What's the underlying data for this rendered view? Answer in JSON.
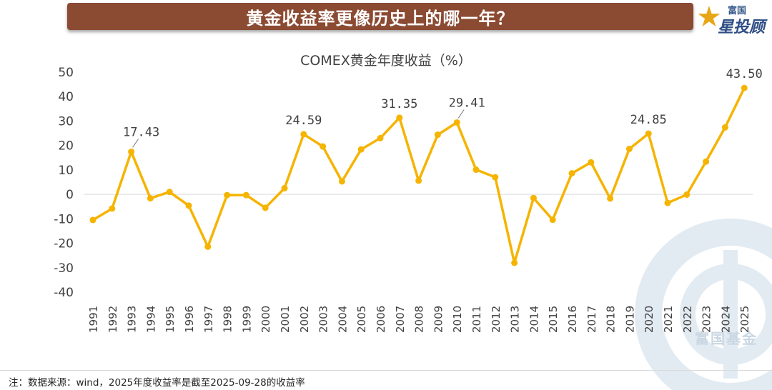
{
  "banner": {
    "title": "黄金收益率更像历史上的哪一年？"
  },
  "logo": {
    "line1": "富国",
    "line2": "星投顾"
  },
  "watermark": {
    "text": "富国基金"
  },
  "colors": {
    "banner": "#8b4a32",
    "series": "#f5b400",
    "axis_text": "#404040"
  },
  "footnote": "注：数据来源：wind，2025年度收益率是截至2025-09-28的收益率",
  "chart_data": {
    "type": "line",
    "title": "COMEX黄金年度收益（%）",
    "xlabel": "",
    "ylabel": "",
    "ylim": [
      -40,
      50
    ],
    "yticks": [
      -40,
      -30,
      -20,
      -10,
      0,
      10,
      20,
      30,
      40,
      50
    ],
    "grid": false,
    "categories": [
      "1991",
      "1992",
      "1993",
      "1994",
      "1995",
      "1996",
      "1997",
      "1998",
      "1999",
      "2000",
      "2001",
      "2002",
      "2003",
      "2004",
      "2005",
      "2006",
      "2007",
      "2008",
      "2009",
      "2010",
      "2011",
      "2012",
      "2013",
      "2014",
      "2015",
      "2016",
      "2017",
      "2018",
      "2019",
      "2020",
      "2021",
      "2022",
      "2023",
      "2024",
      "2025"
    ],
    "series": [
      {
        "values": [
          -10.5,
          -5.8,
          17.43,
          -1.6,
          1.0,
          -4.6,
          -21.4,
          -0.3,
          -0.3,
          -5.5,
          2.5,
          24.59,
          19.6,
          5.3,
          18.4,
          23.0,
          31.35,
          5.6,
          24.4,
          29.41,
          10.1,
          7.0,
          -28.0,
          -1.5,
          -10.4,
          8.6,
          13.1,
          -1.7,
          18.6,
          24.85,
          -3.5,
          -0.1,
          13.4,
          27.4,
          43.5
        ]
      }
    ],
    "annotations": [
      {
        "category": "1993",
        "label": "17.43"
      },
      {
        "category": "2002",
        "label": "24.59"
      },
      {
        "category": "2007",
        "label": "31.35"
      },
      {
        "category": "2010",
        "label": "29.41"
      },
      {
        "category": "2020",
        "label": "24.85"
      },
      {
        "category": "2025",
        "label": "43.50"
      }
    ]
  }
}
